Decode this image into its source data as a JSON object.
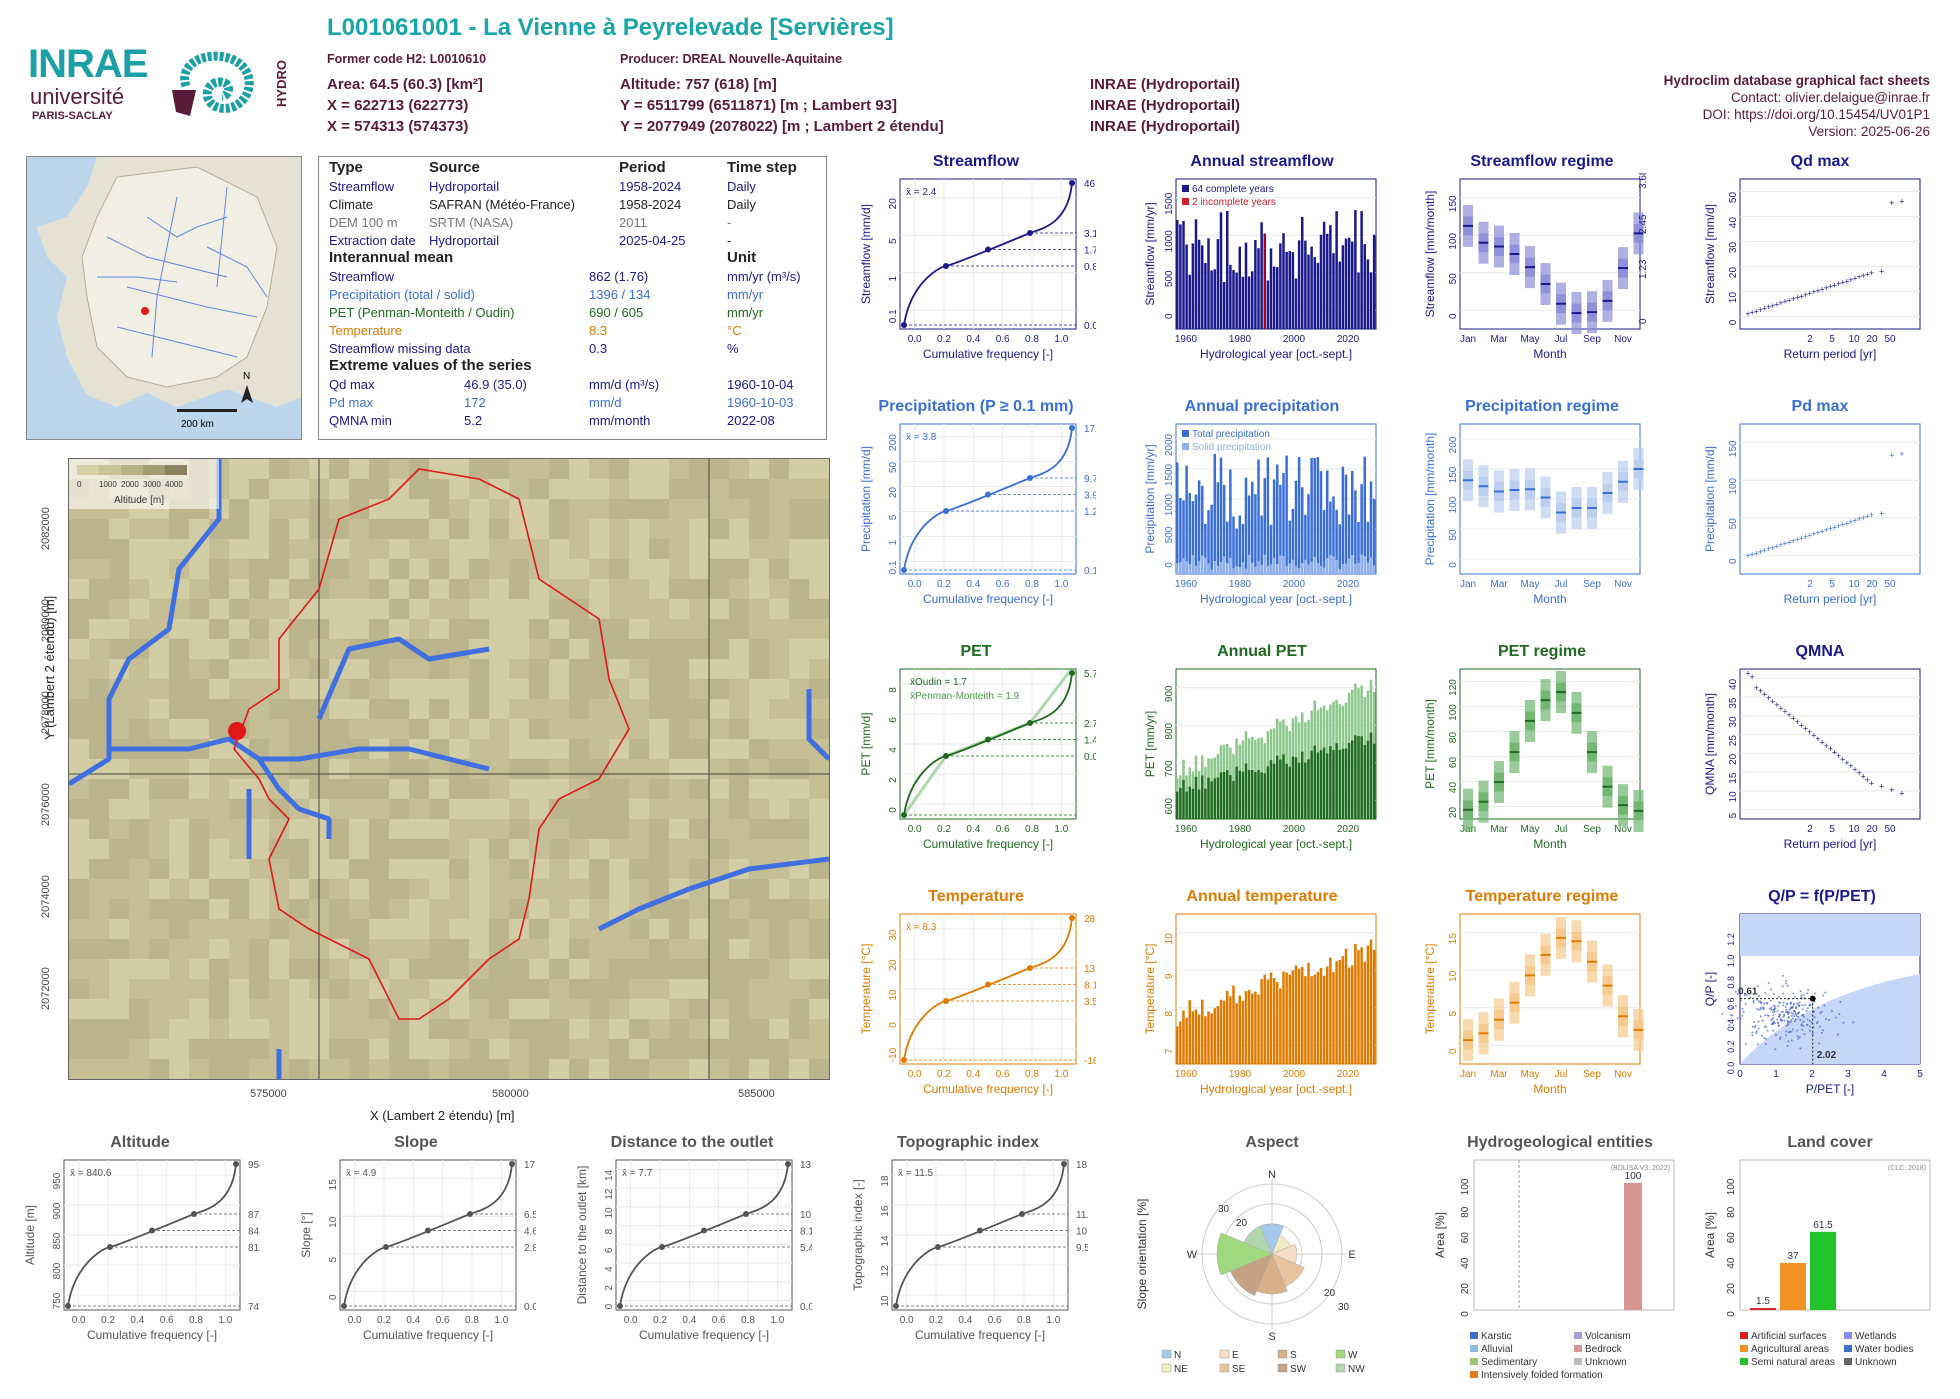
{
  "header": {
    "title": "L001061001 - La Vienne à Peyrelevade [Servières]",
    "former_code": "Former code H2: L0010610",
    "producer": "Producer: DREAL Nouvelle-Aquitaine",
    "area": "Area: 64.5 (60.3) [km²]",
    "altitude": "Altitude: 757 (618) [m]",
    "x93": "X = 622713 (622773)",
    "y93": "Y = 6511799 (6511871) [m ; Lambert 93]",
    "src1": "INRAE (Hydroportail)",
    "x2e": "X = 574313 (574373)",
    "y2e": "Y = 2077949 (2078022) [m ; Lambert 2 étendu]",
    "src2": "INRAE (Hydroportail)",
    "src3": "INRAE (Hydroportail)",
    "db": "Hydroclim database graphical fact sheets",
    "contact": "Contact: olivier.delaigue@inrae.fr",
    "doi": "DOI: https://doi.org/10.15454/UV01P1",
    "version": "Version: 2025-06-26",
    "logo_inrae": "INRAE",
    "logo_univ": "université",
    "logo_paris": "PARIS-SACLAY",
    "logo_hydro": "HYDRO"
  },
  "info": {
    "head": [
      "Type",
      "Source",
      "Period",
      "Time step"
    ],
    "rows": [
      [
        "Streamflow",
        "Hydroportail",
        "1958-2024",
        "Daily"
      ],
      [
        "Climate",
        "SAFRAN (Météo-France)",
        "1958-2024",
        "Daily"
      ],
      [
        "DEM 100 m",
        "SRTM (NASA)",
        "2011",
        "-"
      ],
      [
        "Extraction date",
        "Hydroportail",
        "2025-04-25",
        "-"
      ]
    ],
    "inter_title": "Interannual mean",
    "unit_title": "Unit",
    "inter": [
      [
        "Streamflow",
        "862 (1.76)",
        "mm/yr (m³/s)"
      ],
      [
        "Precipitation (total / solid)",
        "1396 / 134",
        "mm/yr"
      ],
      [
        "PET (Penman-Monteith / Oudin)",
        "690 / 605",
        "mm/yr"
      ],
      [
        "Temperature",
        "8.3",
        "°C"
      ],
      [
        "Streamflow missing data",
        "0.3",
        "%"
      ]
    ],
    "extreme_title": "Extreme values of the series",
    "extreme": [
      [
        "Qd max",
        "46.9 (35.0)",
        "mm/d (m³/s)",
        "1960-10-04"
      ],
      [
        "Pd max",
        "172",
        "mm/d",
        "1960-10-03"
      ],
      [
        "QMNA min",
        "5.2",
        "mm/month",
        "2022-08"
      ]
    ]
  },
  "minimap": {
    "scale": "200 km",
    "north": "N"
  },
  "bigmap": {
    "legend_ticks": [
      "0",
      "1000",
      "2000",
      "3000",
      "4000"
    ],
    "legend_title": "Altitude [m]",
    "yticks": [
      "2072000",
      "2074000",
      "2076000",
      "2078000",
      "2080000",
      "2082000"
    ],
    "xticks": [
      "575000",
      "580000",
      "585000"
    ],
    "xlabel": "X (Lambert 2 étendu) [m]",
    "ylabel": "Y (Lambert 2 étendu) [m]"
  },
  "colors": {
    "flow": "#1a1a8c",
    "precip": "#3a6fd8",
    "precip_light": "#8fb0ec",
    "pet": "#1f6b1f",
    "pet_light": "#8cc78c",
    "temp": "#e07b00",
    "temp_light": "#f6c98c",
    "map_basin": "#e01818",
    "river": "#3f6fe0"
  },
  "chart_data": [
    {
      "id": "streamflow",
      "type": "line",
      "title": "Streamflow",
      "xlabel": "Cumulative frequency [-]",
      "ylabel": "Streamflow [mm/d]",
      "log": true,
      "ylim": [
        0.04,
        50
      ],
      "mean": "x̄ = 2.4",
      "points": [
        [
          0,
          0.04
        ],
        [
          0.25,
          0.8
        ],
        [
          0.5,
          1.7
        ],
        [
          0.75,
          3.1
        ],
        [
          1,
          46.9
        ]
      ],
      "right_ticks": [
        "46.9",
        "3.1",
        "1.7",
        "0.8",
        "0.0"
      ],
      "yticks": [
        "0.1",
        "1",
        "5",
        "20"
      ]
    },
    {
      "id": "annual_streamflow",
      "type": "bar",
      "title": "Annual streamflow",
      "xlabel": "Hydrological year [oct.-sept.]",
      "ylabel": "Streamflow [mm/yr]",
      "ylim": [
        0,
        1600
      ],
      "yticks": [
        "0",
        "500",
        "1000",
        "1500"
      ],
      "xticks": [
        "1960",
        "1980",
        "2000",
        "2020"
      ],
      "legend": [
        "64 complete years",
        "2 incomplete years"
      ]
    },
    {
      "id": "streamflow_regime",
      "type": "box",
      "title": "Streamflow regime",
      "xlabel": "Month",
      "ylabel": "Streamflow [mm/month]",
      "ylim": [
        0,
        160
      ],
      "yticks": [
        "0",
        "50",
        "100",
        "150"
      ],
      "right_ticks": [
        "3.68",
        "2.45",
        "1.23",
        "0"
      ],
      "months": [
        "Jan",
        "Mar",
        "May",
        "Jul",
        "Sep",
        "Nov"
      ],
      "medians": [
        110,
        92,
        88,
        80,
        66,
        48,
        27,
        17,
        18,
        30,
        65,
        102
      ]
    },
    {
      "id": "qd_max",
      "type": "scatter",
      "title": "Qd max",
      "xlabel": "Return period [yr]",
      "ylabel": "Streamflow [mm/d]",
      "ylim": [
        0,
        50
      ],
      "yticks": [
        "0",
        "10",
        "20",
        "30",
        "40",
        "50"
      ],
      "xticks": [
        "2",
        "5",
        "10",
        "20",
        "50"
      ]
    },
    {
      "id": "precipitation",
      "type": "line",
      "title": "Precipitation (P ≥ 0.1 mm)",
      "xlabel": "Cumulative frequency [-]",
      "ylabel": "Precipitation [mm/d]",
      "log": true,
      "mean": "x̄ = 3.8",
      "points": [
        [
          0,
          0.1
        ],
        [
          0.25,
          1.2
        ],
        [
          0.5,
          3.9
        ],
        [
          0.75,
          9.7
        ],
        [
          1,
          172
        ]
      ],
      "right_ticks": [
        "172.0",
        "9.7",
        "3.9",
        "1.2",
        "0.1"
      ],
      "yticks": [
        "0.1",
        "1",
        "5",
        "20",
        "50",
        "200"
      ]
    },
    {
      "id": "annual_precipitation",
      "type": "bar",
      "title": "Annual precipitation",
      "xlabel": "Hydrological year [oct.-sept.]",
      "ylabel": "Precipitation [mm/yr]",
      "ylim": [
        0,
        2000
      ],
      "yticks": [
        "0",
        "500",
        "1000",
        "1500",
        "2000"
      ],
      "xticks": [
        "1960",
        "1980",
        "2000",
        "2020"
      ],
      "legend": [
        "Total precipitation",
        "Solid precipitation"
      ]
    },
    {
      "id": "precipitation_regime",
      "type": "box",
      "title": "Precipitation regime",
      "xlabel": "Month",
      "ylabel": "Precipitation [mm/month]",
      "ylim": [
        0,
        200
      ],
      "yticks": [
        "0",
        "50",
        "100",
        "150",
        "200"
      ],
      "months": [
        "Jan",
        "Mar",
        "May",
        "Jul",
        "Sep",
        "Nov"
      ],
      "medians": [
        125,
        117,
        110,
        112,
        113,
        102,
        82,
        88,
        88,
        108,
        123,
        140
      ]
    },
    {
      "id": "pd_max",
      "type": "scatter",
      "title": "Pd max",
      "xlabel": "Return period [yr]",
      "ylabel": "Precipitation [mm/d]",
      "ylim": [
        0,
        200
      ],
      "yticks": [
        "0",
        "50",
        "100",
        "150"
      ],
      "xticks": [
        "2",
        "5",
        "10",
        "20",
        "50"
      ]
    },
    {
      "id": "pet",
      "type": "line",
      "title": "PET",
      "xlabel": "Cumulative frequency [-]",
      "ylabel": "PET [mm/d]",
      "ylim": [
        0,
        8.4
      ],
      "mean1": "x̄Oudin = 1.7",
      "mean2": "x̄Penman-Monteith = 1.9",
      "points": [
        [
          0,
          0
        ],
        [
          0.25,
          0.5
        ],
        [
          0.5,
          1.4
        ],
        [
          0.75,
          2.7
        ],
        [
          1,
          5.7
        ]
      ],
      "right_ticks": [
        "5.7",
        "2.7",
        "1.4",
        "0.0"
      ],
      "yticks": [
        "0",
        "2",
        "4",
        "6",
        "8"
      ]
    },
    {
      "id": "annual_pet",
      "type": "bar",
      "title": "Annual PET",
      "xlabel": "Hydrological year [oct.-sept.]",
      "ylabel": "PET [mm/yr]",
      "ylim": [
        560,
        920
      ],
      "yticks": [
        "600",
        "700",
        "800",
        "900"
      ],
      "xticks": [
        "1960",
        "1980",
        "2000",
        "2020"
      ]
    },
    {
      "id": "pet_regime",
      "type": "box",
      "title": "PET regime",
      "xlabel": "Month",
      "ylabel": "PET [mm/month]",
      "ylim": [
        0,
        130
      ],
      "yticks": [
        "20",
        "40",
        "60",
        "80",
        "100",
        "120"
      ],
      "months": [
        "Jan",
        "Mar",
        "May",
        "Jul",
        "Sep",
        "Nov"
      ],
      "medians": [
        8,
        15,
        32,
        58,
        85,
        103,
        110,
        92,
        58,
        28,
        12,
        7
      ]
    },
    {
      "id": "qmna",
      "type": "scatter",
      "title": "QMNA",
      "xlabel": "Return period [yr]",
      "ylabel": "QMNA [mm/month]",
      "ylim": [
        0,
        42
      ],
      "yticks": [
        "5",
        "10",
        "15",
        "20",
        "25",
        "30",
        "35",
        "40"
      ],
      "xticks": [
        "2",
        "5",
        "10",
        "20",
        "50"
      ]
    },
    {
      "id": "temperature",
      "type": "line",
      "title": "Temperature",
      "xlabel": "Cumulative frequency [-]",
      "ylabel": "Temperature [°C]",
      "ylim": [
        -17,
        29
      ],
      "mean": "x̄ = 8.3",
      "points": [
        [
          0,
          -16.4
        ],
        [
          0.25,
          3.5
        ],
        [
          0.5,
          8.1
        ],
        [
          0.75,
          13.1
        ],
        [
          1,
          28
        ]
      ],
      "right_ticks": [
        "28.0",
        "13.1",
        "8.1",
        "3.5",
        "-16.4"
      ],
      "yticks": [
        "-10",
        "0",
        "10",
        "20",
        "30"
      ]
    },
    {
      "id": "annual_temperature",
      "type": "bar",
      "title": "Annual temperature",
      "xlabel": "Hydrological year [oct.-sept.]",
      "ylabel": "Temperature [°C]",
      "ylim": [
        6.5,
        10.3
      ],
      "yticks": [
        "7",
        "8",
        "9",
        "10"
      ],
      "xticks": [
        "1960",
        "1980",
        "2000",
        "2020"
      ]
    },
    {
      "id": "temperature_regime",
      "type": "box",
      "title": "Temperature regime",
      "xlabel": "Month",
      "ylabel": "Temperature [°C]",
      "ylim": [
        -2,
        20
      ],
      "yticks": [
        "0",
        "5",
        "10",
        "15"
      ],
      "months": [
        "Jan",
        "Mar",
        "May",
        "Jul",
        "Sep",
        "Nov"
      ],
      "medians": [
        1.5,
        2.5,
        4.5,
        7,
        11,
        14,
        16.5,
        16,
        13,
        9.5,
        5,
        3
      ]
    },
    {
      "id": "qp_pet",
      "type": "scatter",
      "title": "Q/P = f(P/PET)",
      "xlabel": "P/PET [-]",
      "ylabel": "Q/P [-]",
      "xlim": [
        0,
        5
      ],
      "ylim": [
        0,
        1.4
      ],
      "yticks": [
        "0.0",
        "0.2",
        "0.4",
        "0.6",
        "0.8",
        "1.0",
        "1.2"
      ],
      "xticks": [
        "0",
        "1",
        "2",
        "3",
        "4",
        "5"
      ],
      "point": [
        2.02,
        0.61
      ],
      "labels": [
        "0.61",
        "2.02"
      ]
    },
    {
      "id": "altitude",
      "type": "line",
      "title": "Altitude",
      "xlabel": "Cumulative frequency [-]",
      "ylabel": "Altitude [m]",
      "ylim": [
        740,
        965
      ],
      "mean": "x̄ = 840.6",
      "points": [
        [
          0,
          747
        ],
        [
          0.25,
          812
        ],
        [
          0.5,
          842
        ],
        [
          0.75,
          872
        ],
        [
          1,
          958
        ]
      ],
      "right_ticks": [
        "958",
        "872",
        "842",
        "812",
        "747"
      ],
      "yticks": [
        "750",
        "800",
        "850",
        "900",
        "950"
      ]
    },
    {
      "id": "slope",
      "type": "line",
      "title": "Slope",
      "xlabel": "Cumulative frequency [-]",
      "ylabel": "Slope [°]",
      "ylim": [
        0,
        18
      ],
      "mean": "x̄ = 4.9",
      "points": [
        [
          0,
          0
        ],
        [
          0.25,
          2.8
        ],
        [
          0.5,
          4.6
        ],
        [
          0.75,
          6.5
        ],
        [
          1,
          17.5
        ]
      ],
      "right_ticks": [
        "17.5",
        "6.5",
        "4.6",
        "2.8",
        "0.0"
      ],
      "yticks": [
        "0",
        "5",
        "10",
        "15"
      ]
    },
    {
      "id": "distance",
      "type": "line",
      "title": "Distance to the outlet",
      "xlabel": "Cumulative frequency [-]",
      "ylabel": "Distance to the outlet [km]",
      "ylim": [
        0,
        14
      ],
      "mean": "x̄ = 7.7",
      "points": [
        [
          0,
          0
        ],
        [
          0.25,
          5.4
        ],
        [
          0.5,
          8.1
        ],
        [
          0.75,
          10
        ],
        [
          1,
          13.3
        ]
      ],
      "right_ticks": [
        "13.3",
        "10.0",
        "8.1",
        "5.4",
        "0.0"
      ],
      "yticks": [
        "0",
        "2",
        "4",
        "6",
        "8",
        "10",
        "12",
        "14"
      ]
    },
    {
      "id": "topo",
      "type": "line",
      "title": "Topographic index",
      "xlabel": "Cumulative frequency [-]",
      "ylabel": "Topographic index [-]",
      "ylim": [
        9,
        18.6
      ],
      "mean": "x̄ = 11.5",
      "points": [
        [
          0,
          9.5
        ],
        [
          0.25,
          10.8
        ],
        [
          0.5,
          11.2
        ],
        [
          0.75,
          11.9
        ],
        [
          1,
          18
        ]
      ],
      "right_ticks": [
        "18.0",
        "11.9",
        "10.8",
        "9.5"
      ],
      "yticks": [
        "10",
        "12",
        "14",
        "16",
        "18"
      ]
    },
    {
      "id": "aspect",
      "type": "pie",
      "title": "Aspect",
      "ylabel": "Slope orientation [%]",
      "directions": [
        "N",
        "NE",
        "E",
        "SE",
        "S",
        "SW",
        "W",
        "NW"
      ],
      "values": [
        12,
        8,
        10,
        14,
        16,
        18,
        22,
        12
      ],
      "ring_labels": [
        "20",
        "30"
      ],
      "legend": [
        "N",
        "NE",
        "E",
        "SE",
        "S",
        "SW",
        "W",
        "NW"
      ],
      "legend_colors": [
        "#a6c8ec",
        "#f3ecc2",
        "#f7dcc7",
        "#e8c49f",
        "#d8b18a",
        "#c5a283",
        "#9fd87f",
        "#b2d6b0"
      ]
    },
    {
      "id": "hydrogeo",
      "type": "bar",
      "title": "Hydrogeological entities",
      "ylabel": "Area [%]",
      "ylim": [
        0,
        118
      ],
      "yticks": [
        "0",
        "20",
        "40",
        "60",
        "80",
        "100"
      ],
      "note": "(BDLISA V3, 2022)",
      "values": [
        {
          "name": "Bedrock",
          "value": 100
        }
      ],
      "legend": [
        "Karstic",
        "Volcanism",
        "Alluvial",
        "Bedrock",
        "Sedimentary",
        "Unknown",
        "Intensively folded formation"
      ],
      "legend_colors": [
        "#3a6ec7",
        "#a6a0d9",
        "#8fbde0",
        "#d89690",
        "#9dc46f",
        "#bdbdbd",
        "#e07b1e"
      ]
    },
    {
      "id": "landcover",
      "type": "bar",
      "title": "Land cover",
      "ylabel": "Area [%]",
      "ylim": [
        0,
        118
      ],
      "yticks": [
        "0",
        "20",
        "40",
        "60",
        "80",
        "100"
      ],
      "note": "(CLC, 2018)",
      "values": [
        {
          "name": "Artificial surfaces",
          "value": 1.5
        },
        {
          "name": "Agricultural areas",
          "value": 37
        },
        {
          "name": "Semi natural areas",
          "value": 61.5
        }
      ],
      "labels": [
        "1.5",
        "37",
        "61.5"
      ],
      "legend": [
        "Artificial surfaces",
        "Wetlands",
        "Agricultural areas",
        "Water bodies",
        "Semi natural areas",
        "Unknown"
      ],
      "legend_colors": [
        "#d81f1f",
        "#8c8cf0",
        "#f29225",
        "#3a6ec7",
        "#21c42a",
        "#666666"
      ]
    }
  ]
}
